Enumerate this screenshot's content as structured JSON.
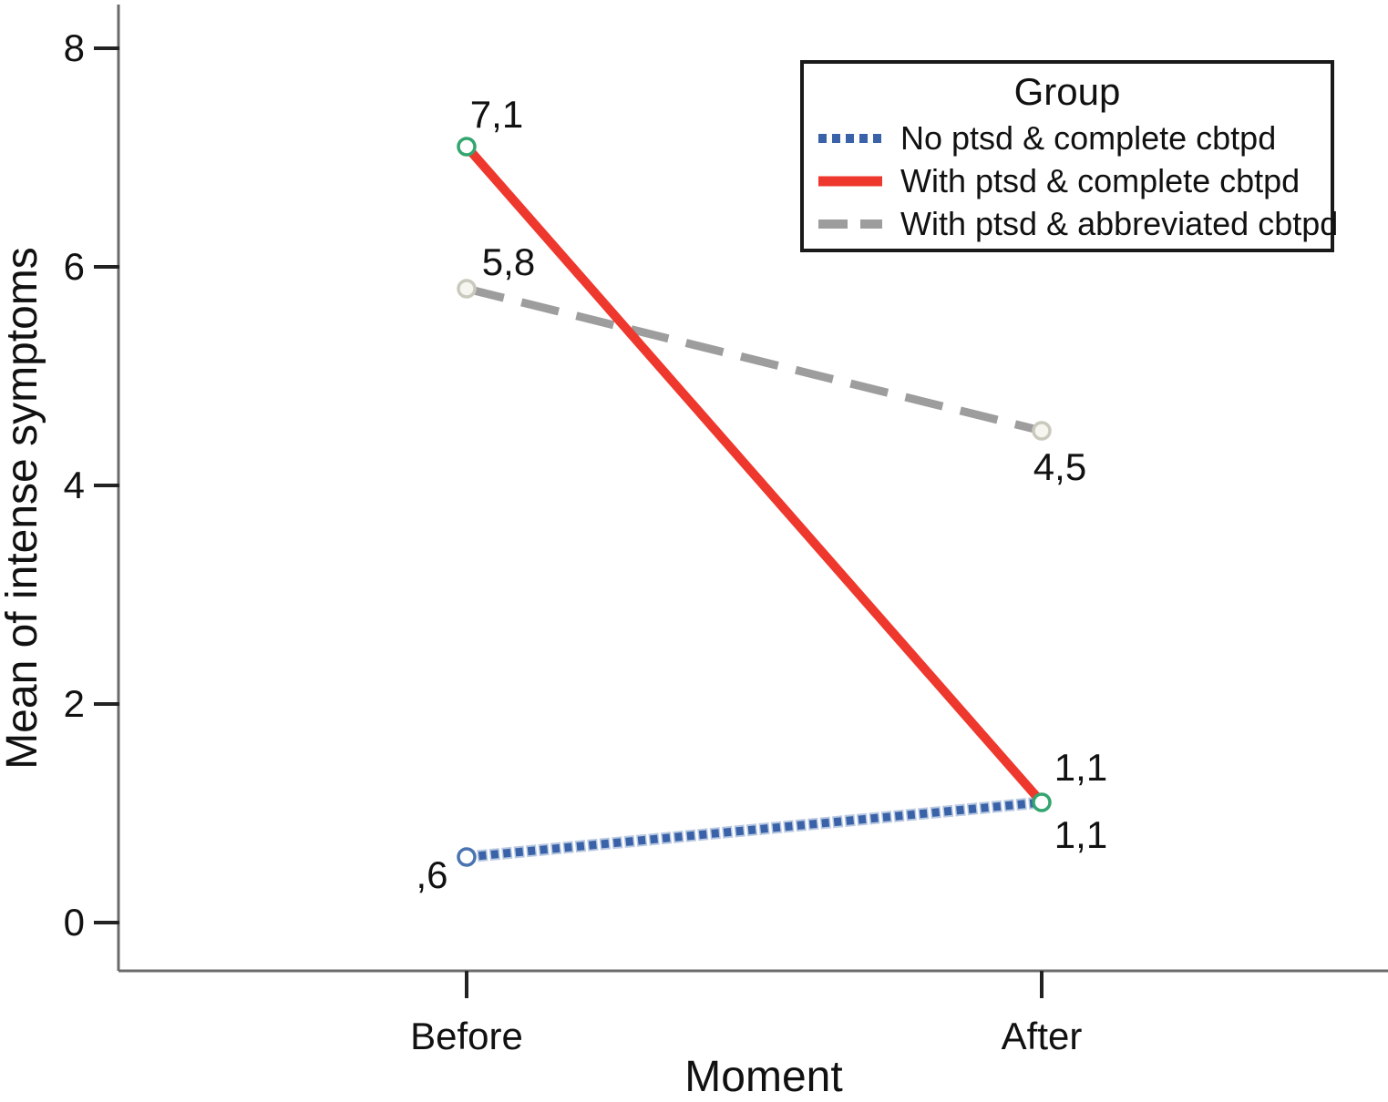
{
  "chart_data": {
    "type": "line",
    "title": "",
    "xlabel": "Moment",
    "ylabel": "Mean of intense symptoms",
    "categories": [
      "Before",
      "After"
    ],
    "ytick_labels": [
      "0",
      "2",
      "4",
      "6",
      "8"
    ],
    "ylim": [
      -0.45,
      8.4
    ],
    "grid": false,
    "legend": {
      "title": "Group",
      "position": "top-right"
    },
    "series": [
      {
        "name": "No ptsd & complete cbtpd",
        "style": "dotted",
        "color": "#3a62a8",
        "halo_color": "#b9c9e2",
        "marker_stroke": "#4a74b0",
        "marker_fill": "#ffffff",
        "values": [
          0.6,
          1.1
        ],
        "point_labels": [
          ",6",
          "1,1"
        ]
      },
      {
        "name": "With ptsd & complete cbtpd",
        "style": "solid",
        "color": "#ee382e",
        "marker_stroke": "#33a56e",
        "marker_fill": "#ffffff",
        "values": [
          7.1,
          1.1
        ],
        "point_labels": [
          "7,1",
          "1,1"
        ]
      },
      {
        "name": "With ptsd & abbreviated cbtpd",
        "style": "dashed",
        "color": "#9d9d9d",
        "marker_stroke": "#c9c9bd",
        "marker_fill": "#f6f6f0",
        "values": [
          5.8,
          4.5
        ],
        "point_labels": [
          "5,8",
          "4,5"
        ]
      }
    ]
  }
}
